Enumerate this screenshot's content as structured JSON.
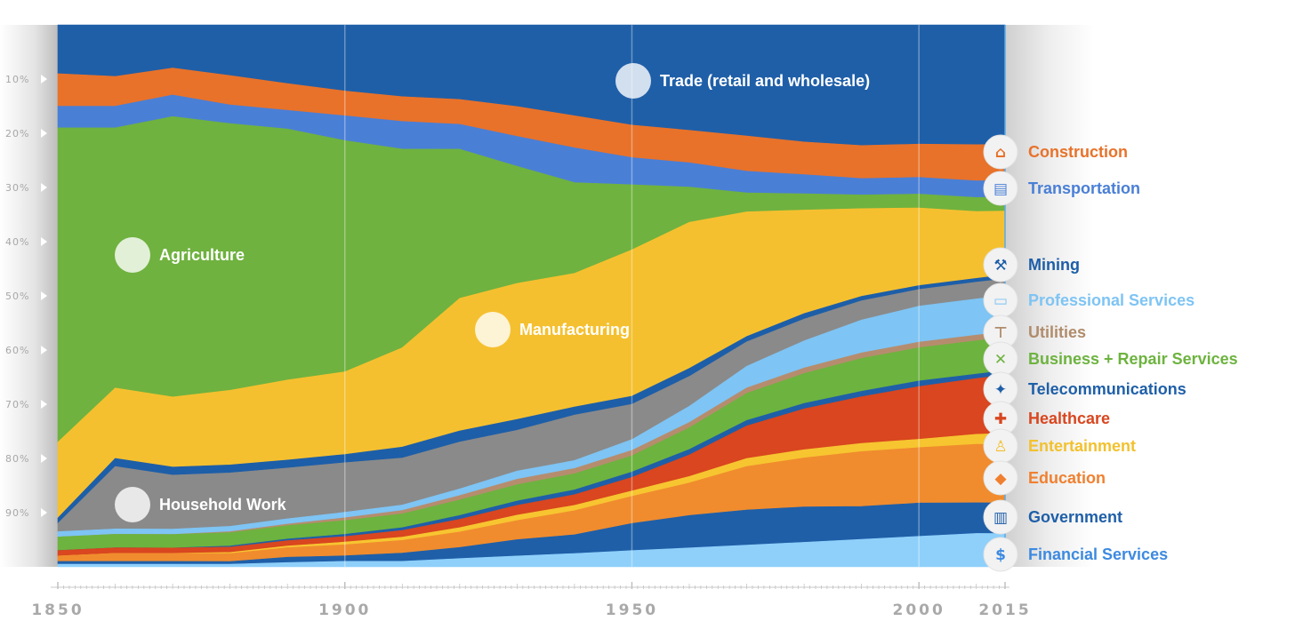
{
  "chart_data": {
    "type": "area",
    "stacked": true,
    "title": "",
    "xlabel": "",
    "ylabel": "",
    "x": [
      1850,
      1860,
      1870,
      1880,
      1890,
      1900,
      1910,
      1920,
      1930,
      1940,
      1950,
      1960,
      1970,
      1980,
      1990,
      2000,
      2010,
      2015
    ],
    "xlim": [
      1850,
      2015
    ],
    "ylim": [
      0,
      100
    ],
    "y_axis_direction": "top-down",
    "x_ticks": [
      "1850",
      "1900",
      "1950",
      "2000",
      "2015"
    ],
    "y_ticks": [
      "10%",
      "20%",
      "30%",
      "40%",
      "50%",
      "60%",
      "70%",
      "80%",
      "90%"
    ],
    "grid": true,
    "legend_position": "right",
    "series": [
      {
        "name": "Trade (retail and wholesale)",
        "color": "#1f5fa8",
        "label_inside": true,
        "values": [
          9.0,
          9.5,
          8.0,
          9.5,
          11.0,
          12.0,
          13.0,
          13.5,
          15.0,
          17.0,
          18.5,
          19.5,
          20.5,
          21.5,
          22.0,
          21.5,
          21.5,
          21.5
        ]
      },
      {
        "name": "Construction",
        "color": "#e8722a",
        "values": [
          6.0,
          5.5,
          5.0,
          5.5,
          5.0,
          4.5,
          4.5,
          4.5,
          5.5,
          6.0,
          6.0,
          6.0,
          6.5,
          6.0,
          6.0,
          6.0,
          6.5,
          6.5
        ]
      },
      {
        "name": "Transportation",
        "color": "#4a7fd6",
        "values": [
          4.0,
          4.0,
          4.0,
          3.5,
          3.5,
          4.5,
          5.0,
          4.5,
          5.5,
          6.5,
          5.0,
          4.5,
          4.0,
          3.5,
          3.0,
          3.0,
          3.0,
          3.0
        ]
      },
      {
        "name": "Agriculture",
        "color": "#6fb23f",
        "label_inside": true,
        "values": [
          58.0,
          48.0,
          52.0,
          50.0,
          47.0,
          42.0,
          36.0,
          27.0,
          21.5,
          17.0,
          12.0,
          6.5,
          3.5,
          3.0,
          2.5,
          2.5,
          2.5,
          2.5
        ]
      },
      {
        "name": "Manufacturing",
        "color": "#f5c02f",
        "label_inside": true,
        "values": [
          14.0,
          13.0,
          13.0,
          14.0,
          15.0,
          15.0,
          18.0,
          24.0,
          25.0,
          25.0,
          27.0,
          27.0,
          23.0,
          19.0,
          16.0,
          14.0,
          12.0,
          11.5
        ]
      },
      {
        "name": "Mining",
        "color": "#1d5ea8",
        "values": [
          1.0,
          1.5,
          1.5,
          1.5,
          1.5,
          1.5,
          2.0,
          2.0,
          2.0,
          1.5,
          1.5,
          1.5,
          1.0,
          1.0,
          0.8,
          0.7,
          0.7,
          0.7
        ]
      },
      {
        "name": "Household Work",
        "color": "#8a8a8a",
        "label_inside": true,
        "values": [
          1.5,
          11.5,
          10.0,
          10.0,
          9.5,
          9.0,
          8.5,
          8.5,
          7.5,
          8.5,
          6.5,
          5.5,
          4.5,
          4.0,
          3.5,
          3.0,
          3.0,
          3.0
        ]
      },
      {
        "name": "Professional Services",
        "color": "#7ec4f4",
        "values": [
          1.0,
          1.0,
          1.0,
          1.0,
          1.0,
          1.0,
          1.0,
          1.2,
          1.5,
          1.5,
          2.0,
          3.0,
          4.0,
          5.0,
          6.0,
          6.5,
          6.5,
          6.5
        ]
      },
      {
        "name": "Utilities",
        "color": "#b58d6e",
        "values": [
          0.0,
          0.0,
          0.0,
          0.2,
          0.3,
          0.5,
          0.6,
          0.8,
          1.0,
          1.0,
          1.0,
          1.0,
          1.0,
          1.0,
          1.0,
          1.0,
          1.0,
          1.0
        ]
      },
      {
        "name": "Business + Repair Services",
        "color": "#6db33f",
        "values": [
          2.5,
          2.5,
          2.5,
          2.5,
          2.5,
          2.5,
          2.5,
          2.8,
          3.0,
          3.0,
          3.0,
          4.0,
          5.0,
          5.5,
          6.0,
          6.0,
          6.0,
          6.0
        ]
      },
      {
        "name": "Telecommunications",
        "color": "#1f5fa8",
        "values": [
          0.0,
          0.0,
          0.0,
          0.2,
          0.3,
          0.4,
          0.5,
          0.7,
          0.8,
          0.9,
          1.0,
          1.0,
          1.0,
          1.0,
          1.0,
          1.0,
          0.8,
          0.8
        ]
      },
      {
        "name": "Healthcare",
        "color": "#d9461f",
        "values": [
          1.0,
          1.0,
          1.0,
          1.0,
          1.0,
          1.0,
          1.2,
          1.5,
          1.8,
          2.0,
          2.5,
          4.0,
          6.0,
          7.5,
          8.5,
          9.5,
          10.0,
          10.5
        ]
      },
      {
        "name": "Entertainment",
        "color": "#f7c530",
        "values": [
          0.0,
          0.0,
          0.0,
          0.2,
          0.3,
          0.5,
          0.6,
          0.8,
          1.0,
          1.0,
          1.0,
          1.2,
          1.5,
          1.5,
          1.5,
          1.5,
          1.8,
          2.0
        ]
      },
      {
        "name": "Education",
        "color": "#f08c2e",
        "values": [
          1.0,
          1.5,
          1.5,
          1.5,
          1.8,
          2.0,
          2.3,
          2.8,
          3.5,
          4.5,
          5.0,
          6.0,
          8.0,
          9.0,
          10.0,
          10.0,
          10.5,
          10.5
        ]
      },
      {
        "name": "Government",
        "color": "#1f5fa8",
        "values": [
          0.5,
          0.5,
          0.5,
          0.5,
          1.0,
          1.0,
          1.5,
          2.0,
          3.0,
          3.5,
          5.0,
          6.0,
          6.5,
          6.5,
          6.0,
          6.0,
          5.5,
          5.5
        ]
      },
      {
        "name": "Financial Services",
        "color": "#8fd0fb",
        "values": [
          0.5,
          0.5,
          0.5,
          0.5,
          0.8,
          1.0,
          1.0,
          1.5,
          2.0,
          2.5,
          3.0,
          3.5,
          4.0,
          4.5,
          5.0,
          5.5,
          6.0,
          6.0
        ]
      }
    ]
  },
  "inline_labels": [
    {
      "text": "Trade (retail and wholesale)",
      "icon": "shopping-cart-icon"
    },
    {
      "text": "Agriculture",
      "icon": "wheat-icon"
    },
    {
      "text": "Manufacturing",
      "icon": "factory-icon"
    },
    {
      "text": "Household Work",
      "icon": "house-icon"
    }
  ],
  "legend": [
    {
      "text": "Construction",
      "icon": "crane-icon",
      "color": "#e8722a"
    },
    {
      "text": "Transportation",
      "icon": "train-icon",
      "color": "#4a7fd6"
    },
    {
      "text": "Mining",
      "icon": "pickaxe-icon",
      "color": "#1d5ea8"
    },
    {
      "text": "Professional Services",
      "icon": "briefcase-icon",
      "color": "#7ec4f4"
    },
    {
      "text": "Utilities",
      "icon": "faucet-icon",
      "color": "#b08c6c"
    },
    {
      "text": "Business + Repair Services",
      "icon": "tools-icon",
      "color": "#6db33f"
    },
    {
      "text": "Telecommunications",
      "icon": "satellite-icon",
      "color": "#1f5fa8"
    },
    {
      "text": "Healthcare",
      "icon": "medical-cross-icon",
      "color": "#d9461f"
    },
    {
      "text": "Entertainment",
      "icon": "joystick-icon",
      "color": "#f2c12e"
    },
    {
      "text": "Education",
      "icon": "graduation-cap-icon",
      "color": "#f08030"
    },
    {
      "text": "Government",
      "icon": "government-building-icon",
      "color": "#1f5fa8"
    },
    {
      "text": "Financial Services",
      "icon": "money-bag-icon",
      "color": "#3d8ae0"
    }
  ]
}
